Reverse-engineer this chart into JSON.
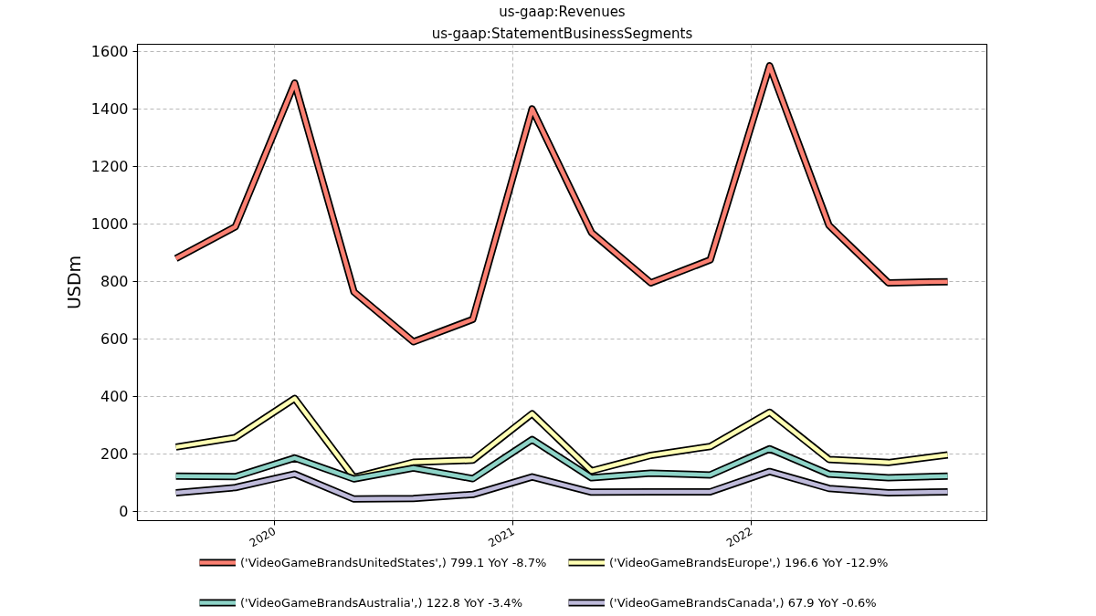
{
  "chart_data": {
    "type": "line",
    "title": "us-gaap:Revenues",
    "subtitle": "us-gaap:StatementBusinessSegments",
    "ylabel": "USDm",
    "x": [
      "2019-08-03",
      "2019-11-02",
      "2020-02-01",
      "2020-05-02",
      "2020-08-01",
      "2020-10-31",
      "2021-01-30",
      "2021-05-01",
      "2021-07-31",
      "2021-10-30",
      "2022-01-29",
      "2022-04-30",
      "2022-07-30",
      "2022-10-29"
    ],
    "xlim": [
      "2019-06-05",
      "2022-12-28"
    ],
    "xticks": [
      "2020",
      "2021",
      "2022"
    ],
    "ylim": [
      -32,
      1625
    ],
    "yticks": [
      0,
      200,
      400,
      600,
      800,
      1000,
      1200,
      1400,
      1600
    ],
    "grid": true,
    "legend": "bottom",
    "line_style": "solid",
    "series": [
      {
        "name": "('VideoGameBrandsUnitedStates',) 799.1 YoY -8.7%",
        "color": "#fb8072",
        "values": [
          880,
          990,
          1490,
          763,
          590,
          668,
          1400,
          970,
          795,
          875,
          1550,
          995,
          795,
          799.1
        ]
      },
      {
        "name": "('VideoGameBrandsEurope',) 196.6 YoY -12.9%",
        "color": "#ffffb3",
        "values": [
          224,
          257,
          393,
          118,
          171,
          178,
          340,
          141,
          195,
          226,
          345,
          181,
          170,
          196.6
        ]
      },
      {
        "name": "('VideoGameBrandsAustralia',) 122.8 YoY -3.4%",
        "color": "#8dd3c7",
        "values": [
          123,
          121,
          186,
          113,
          151,
          114,
          250,
          117,
          133,
          127,
          218,
          130,
          117,
          122.8
        ]
      },
      {
        "name": "('VideoGameBrandsCanada',) 67.9 YoY -0.6%",
        "color": "#bebada",
        "values": [
          65,
          83,
          130,
          43,
          45,
          59,
          120,
          67,
          68,
          68,
          139,
          80,
          65,
          67.9
        ]
      }
    ]
  }
}
